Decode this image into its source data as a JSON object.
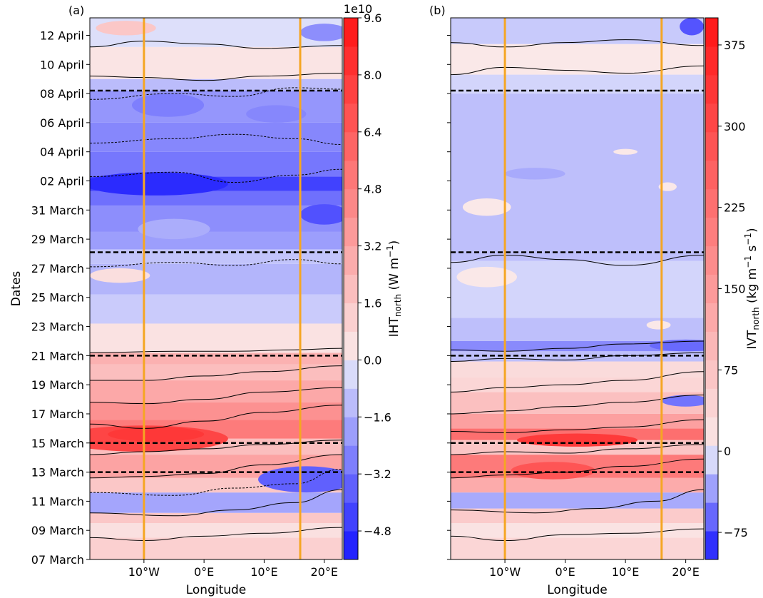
{
  "chart_data": [
    {
      "type": "heatmap",
      "panel_label": "(a)",
      "xlabel": "Longitude",
      "ylabel": "Dates",
      "x_ticks": [
        "10°W",
        "0°E",
        "10°E",
        "20°E"
      ],
      "x_tick_values": [
        -10,
        0,
        10,
        20
      ],
      "xlim": [
        -19,
        23
      ],
      "y_ticks": [
        "07 March",
        "09 March",
        "11 March",
        "13 March",
        "15 March",
        "17 March",
        "19 March",
        "21 March",
        "23 March",
        "25 March",
        "27 March",
        "29 March",
        "31 March",
        "02 April",
        "04 April",
        "06 April",
        "08 April",
        "10 April",
        "12 April"
      ],
      "y_tick_values": [
        0,
        2,
        4,
        6,
        8,
        10,
        12,
        14,
        16,
        18,
        20,
        22,
        24,
        26,
        28,
        30,
        32,
        34,
        36
      ],
      "ylim": [
        0,
        37.2
      ],
      "orange_vertical_lines_lon": [
        -10,
        16
      ],
      "dashed_horizontal_lines_day": [
        6,
        8,
        14,
        21.1,
        32.2
      ],
      "colorbar": {
        "label_main": "IHT",
        "label_sub": "north",
        "label_unit": " (W m",
        "label_exp": "−1",
        "label_close": ")",
        "offset_text": "1e10",
        "ticks": [
          "9.6",
          "8.0",
          "6.4",
          "4.8",
          "3.2",
          "1.6",
          "0.0",
          "−1.6",
          "−3.2",
          "−4.8"
        ],
        "tick_values": [
          9.6,
          8.0,
          6.4,
          4.8,
          3.2,
          1.6,
          0.0,
          -1.6,
          -3.2,
          -4.8
        ],
        "range": [
          -5.6,
          9.6
        ]
      },
      "bands": [
        {
          "from": 0,
          "to": 1.5,
          "value": 1.2
        },
        {
          "from": 1.5,
          "to": 2.5,
          "value": 0.5
        },
        {
          "from": 2.5,
          "to": 3.2,
          "value": 1.6
        },
        {
          "from": 3.2,
          "to": 4.6,
          "value": -1.8
        },
        {
          "from": 4.6,
          "to": 5.6,
          "value": 1.6
        },
        {
          "from": 5.6,
          "to": 7.2,
          "value": 3.2
        },
        {
          "from": 7.2,
          "to": 8.3,
          "value": 2.0
        },
        {
          "from": 8.3,
          "to": 9.6,
          "value": 5.0
        },
        {
          "from": 9.6,
          "to": 10.8,
          "value": 4.0
        },
        {
          "from": 10.8,
          "to": 12.3,
          "value": 3.0
        },
        {
          "from": 12.3,
          "to": 13.4,
          "value": 2.0
        },
        {
          "from": 13.4,
          "to": 14.2,
          "value": 2.6
        },
        {
          "from": 14.2,
          "to": 16.2,
          "value": 0.4
        },
        {
          "from": 16.2,
          "to": 18.2,
          "value": -0.8
        },
        {
          "from": 18.2,
          "to": 20.3,
          "value": -1.4
        },
        {
          "from": 20.3,
          "to": 21.3,
          "value": -1.0
        },
        {
          "from": 21.3,
          "to": 22.5,
          "value": -2.0
        },
        {
          "from": 22.5,
          "to": 24.3,
          "value": -2.4
        },
        {
          "from": 24.3,
          "to": 25.3,
          "value": -3.2
        },
        {
          "from": 25.3,
          "to": 26.3,
          "value": -4.4
        },
        {
          "from": 26.3,
          "to": 28.0,
          "value": -3.0
        },
        {
          "from": 28.0,
          "to": 30.0,
          "value": -2.6
        },
        {
          "from": 30.0,
          "to": 32.2,
          "value": -2.2
        },
        {
          "from": 32.2,
          "to": 33.0,
          "value": -1.2
        },
        {
          "from": 33.0,
          "to": 35.2,
          "value": 0.3
        },
        {
          "from": 35.2,
          "to": 37.2,
          "value": -0.3
        }
      ],
      "blobs": [
        {
          "lon": -10,
          "day": 8.3,
          "rx": 14,
          "ry": 0.9,
          "value": 7.4
        },
        {
          "lon": -8,
          "day": 8.6,
          "rx": 8,
          "ry": 0.5,
          "value": 8.0
        },
        {
          "lon": -8,
          "day": 25.8,
          "rx": 12,
          "ry": 0.8,
          "value": -5.0
        },
        {
          "lon": 17,
          "day": 5.5,
          "rx": 8,
          "ry": 0.9,
          "value": -3.6
        },
        {
          "lon": 20,
          "day": 23.7,
          "rx": 4,
          "ry": 0.7,
          "value": -4.0
        },
        {
          "lon": -6,
          "day": 31.2,
          "rx": 6,
          "ry": 0.8,
          "value": -2.8
        },
        {
          "lon": 12,
          "day": 30.6,
          "rx": 5,
          "ry": 0.6,
          "value": -2.6
        },
        {
          "lon": 20,
          "day": 36.2,
          "rx": 4,
          "ry": 0.6,
          "value": -2.4
        },
        {
          "lon": -13,
          "day": 36.5,
          "rx": 5,
          "ry": 0.5,
          "value": 1.6
        },
        {
          "lon": -14,
          "day": 19.5,
          "rx": 5,
          "ry": 0.5,
          "value": 0.6
        },
        {
          "lon": -5,
          "day": 22.7,
          "rx": 6,
          "ry": 0.7,
          "value": -1.6
        }
      ],
      "contours": [
        {
          "lon": [
            -19,
            -10,
            0,
            10,
            23
          ],
          "day": [
            1.5,
            1.3,
            1.6,
            1.8,
            2.2
          ],
          "dashed": false
        },
        {
          "lon": [
            -19,
            -5,
            5,
            15,
            23
          ],
          "day": [
            3.2,
            3.0,
            3.4,
            3.9,
            4.8
          ],
          "dashed": false
        },
        {
          "lon": [
            -19,
            -5,
            5,
            15,
            23
          ],
          "day": [
            4.6,
            4.4,
            4.9,
            5.2,
            6.2
          ],
          "dashed": true
        },
        {
          "lon": [
            -19,
            -10,
            0,
            10,
            23
          ],
          "day": [
            5.6,
            5.7,
            5.9,
            6.5,
            7.2
          ],
          "dashed": false
        },
        {
          "lon": [
            -19,
            -10,
            0,
            10,
            23
          ],
          "day": [
            7.2,
            7.4,
            7.6,
            7.9,
            8.2
          ],
          "dashed": false
        },
        {
          "lon": [
            -19,
            -10,
            0,
            10,
            23
          ],
          "day": [
            9.3,
            9.0,
            9.5,
            10.1,
            10.6
          ],
          "dashed": false
        },
        {
          "lon": [
            -19,
            -10,
            0,
            10,
            23
          ],
          "day": [
            10.8,
            10.7,
            11.0,
            11.5,
            11.8
          ],
          "dashed": false
        },
        {
          "lon": [
            -19,
            -10,
            0,
            10,
            23
          ],
          "day": [
            12.3,
            12.3,
            12.6,
            12.9,
            13.3
          ],
          "dashed": false
        },
        {
          "lon": [
            -19,
            -5,
            5,
            15,
            23
          ],
          "day": [
            14.2,
            14.3,
            14.3,
            14.4,
            14.5
          ],
          "dashed": false
        },
        {
          "lon": [
            -19,
            -5,
            5,
            15,
            23
          ],
          "day": [
            20.1,
            20.4,
            20.2,
            20.6,
            20.3
          ],
          "dashed": true
        },
        {
          "lon": [
            -19,
            -5,
            5,
            15,
            23
          ],
          "day": [
            26.3,
            26.6,
            25.9,
            26.4,
            26.8
          ],
          "dashed": true
        },
        {
          "lon": [
            -19,
            -5,
            5,
            15,
            23
          ],
          "day": [
            28.6,
            28.9,
            29.2,
            28.9,
            28.5
          ],
          "dashed": true
        },
        {
          "lon": [
            -19,
            -5,
            5,
            15,
            23
          ],
          "day": [
            31.6,
            32.0,
            31.8,
            32.4,
            32.3
          ],
          "dashed": true
        },
        {
          "lon": [
            -19,
            -10,
            0,
            10,
            23
          ],
          "day": [
            33.2,
            33.1,
            32.9,
            33.2,
            33.4
          ],
          "dashed": false
        },
        {
          "lon": [
            -19,
            -10,
            0,
            10,
            23
          ],
          "day": [
            35.2,
            35.6,
            35.4,
            35.1,
            35.3
          ],
          "dashed": false
        }
      ]
    },
    {
      "type": "heatmap",
      "panel_label": "(b)",
      "xlabel": "Longitude",
      "ylabel": "",
      "x_ticks": [
        "10°W",
        "0°E",
        "10°E",
        "20°E"
      ],
      "x_tick_values": [
        -10,
        0,
        10,
        20
      ],
      "xlim": [
        -19,
        23
      ],
      "y_tick_values": [
        0,
        2,
        4,
        6,
        8,
        10,
        12,
        14,
        16,
        18,
        20,
        22,
        24,
        26,
        28,
        30,
        32,
        34,
        36
      ],
      "ylim": [
        0,
        37.2
      ],
      "orange_vertical_lines_lon": [
        -10,
        16
      ],
      "dashed_horizontal_lines_day": [
        6,
        8,
        14,
        21.1,
        32.2
      ],
      "colorbar": {
        "label_main": "IVT",
        "label_sub": "north",
        "label_unit": " (kg m",
        "label_exp1": "−1",
        "label_mid": " s",
        "label_exp2": "−1",
        "label_close": ")",
        "ticks": [
          "375",
          "300",
          "225",
          "150",
          "75",
          "0",
          "−75"
        ],
        "tick_values": [
          375,
          300,
          225,
          150,
          75,
          0,
          -75
        ],
        "range": [
          -100,
          400
        ]
      },
      "bands": [
        {
          "from": 0,
          "to": 1.5,
          "value": 40
        },
        {
          "from": 1.5,
          "to": 2.5,
          "value": 15
        },
        {
          "from": 2.5,
          "to": 3.5,
          "value": 60
        },
        {
          "from": 3.5,
          "to": 4.6,
          "value": -30
        },
        {
          "from": 4.6,
          "to": 5.6,
          "value": 120
        },
        {
          "from": 5.6,
          "to": 7.2,
          "value": 210
        },
        {
          "from": 7.2,
          "to": 8.2,
          "value": 70
        },
        {
          "from": 8.2,
          "to": 9.0,
          "value": 230
        },
        {
          "from": 9.0,
          "to": 10.0,
          "value": 140
        },
        {
          "from": 10.0,
          "to": 11.5,
          "value": 80
        },
        {
          "from": 11.5,
          "to": 12.5,
          "value": 40
        },
        {
          "from": 12.5,
          "to": 13.6,
          "value": 30
        },
        {
          "from": 13.6,
          "to": 14.3,
          "value": -20
        },
        {
          "from": 14.3,
          "to": 15.0,
          "value": -45
        },
        {
          "from": 15.0,
          "to": 16.6,
          "value": -20
        },
        {
          "from": 16.6,
          "to": 20.5,
          "value": -10
        },
        {
          "from": 20.5,
          "to": 32.0,
          "value": -20
        },
        {
          "from": 32.0,
          "to": 33.3,
          "value": -10
        },
        {
          "from": 33.3,
          "to": 35.4,
          "value": 5
        },
        {
          "from": 35.4,
          "to": 37.2,
          "value": -15
        }
      ],
      "blobs": [
        {
          "lon": 2,
          "day": 8.2,
          "rx": 10,
          "ry": 0.45,
          "value": 330
        },
        {
          "lon": -2,
          "day": 6.1,
          "rx": 7,
          "ry": 0.6,
          "value": 280
        },
        {
          "lon": -13,
          "day": 19.4,
          "rx": 5,
          "ry": 0.7,
          "value": 5
        },
        {
          "lon": -13,
          "day": 24.2,
          "rx": 4,
          "ry": 0.6,
          "value": 5
        },
        {
          "lon": 15.5,
          "day": 16.1,
          "rx": 2,
          "ry": 0.3,
          "value": 5
        },
        {
          "lon": 17,
          "day": 25.6,
          "rx": 1.5,
          "ry": 0.3,
          "value": 5
        },
        {
          "lon": 10,
          "day": 28.0,
          "rx": 2,
          "ry": 0.2,
          "value": 5
        },
        {
          "lon": 20,
          "day": 14.7,
          "rx": 6,
          "ry": 0.4,
          "value": -60
        },
        {
          "lon": 20,
          "day": 10.9,
          "rx": 4,
          "ry": 0.4,
          "value": -55
        },
        {
          "lon": 21,
          "day": 36.6,
          "rx": 2,
          "ry": 0.6,
          "value": -70
        },
        {
          "lon": -5,
          "day": 26.5,
          "rx": 5,
          "ry": 0.4,
          "value": -30
        }
      ],
      "contours": [
        {
          "lon": [
            -19,
            -10,
            0,
            10,
            23
          ],
          "day": [
            1.6,
            1.3,
            1.7,
            1.8,
            2.1
          ],
          "dashed": false
        },
        {
          "lon": [
            -19,
            -5,
            5,
            15,
            23
          ],
          "day": [
            3.4,
            3.2,
            3.5,
            4.0,
            4.8
          ],
          "dashed": false
        },
        {
          "lon": [
            -19,
            -10,
            0,
            10,
            23
          ],
          "day": [
            5.6,
            5.8,
            6.0,
            6.4,
            6.9
          ],
          "dashed": false
        },
        {
          "lon": [
            -19,
            -10,
            0,
            10,
            23
          ],
          "day": [
            7.2,
            7.4,
            7.3,
            7.6,
            7.9
          ],
          "dashed": false
        },
        {
          "lon": [
            -19,
            -10,
            0,
            10,
            23
          ],
          "day": [
            8.8,
            8.7,
            8.9,
            9.1,
            9.6
          ],
          "dashed": false
        },
        {
          "lon": [
            -19,
            -10,
            0,
            10,
            23
          ],
          "day": [
            10.0,
            10.2,
            10.5,
            10.8,
            11.3
          ],
          "dashed": false
        },
        {
          "lon": [
            -19,
            -10,
            0,
            10,
            23
          ],
          "day": [
            11.5,
            11.8,
            12.0,
            12.3,
            12.9
          ],
          "dashed": false
        },
        {
          "lon": [
            -19,
            -10,
            0,
            10,
            23
          ],
          "day": [
            13.6,
            13.8,
            13.7,
            14.0,
            14.2
          ],
          "dashed": false
        },
        {
          "lon": [
            -19,
            -10,
            0,
            10,
            23
          ],
          "day": [
            14.4,
            14.3,
            14.5,
            14.8,
            15.0
          ],
          "dashed": false
        },
        {
          "lon": [
            -19,
            -10,
            0,
            10,
            23
          ],
          "day": [
            20.4,
            20.9,
            20.6,
            20.2,
            20.9
          ],
          "dashed": false
        },
        {
          "lon": [
            -19,
            -10,
            0,
            10,
            23
          ],
          "day": [
            33.3,
            33.8,
            33.6,
            33.4,
            33.9
          ],
          "dashed": false
        },
        {
          "lon": [
            -19,
            -10,
            0,
            10,
            23
          ],
          "day": [
            35.5,
            35.2,
            35.5,
            35.7,
            35.3
          ],
          "dashed": false
        }
      ]
    }
  ]
}
